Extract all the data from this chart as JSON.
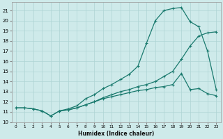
{
  "xlabel": "Humidex (Indice chaleur)",
  "bg_color": "#ceeaea",
  "grid_color": "#aed4d4",
  "line_color": "#1a7a6e",
  "xlim": [
    -0.5,
    23.5
  ],
  "ylim": [
    10.0,
    21.8
  ],
  "yticks": [
    10,
    11,
    12,
    13,
    14,
    15,
    16,
    17,
    18,
    19,
    20,
    21
  ],
  "xticks": [
    0,
    1,
    2,
    3,
    4,
    5,
    6,
    7,
    8,
    9,
    10,
    11,
    12,
    13,
    14,
    15,
    16,
    17,
    18,
    19,
    20,
    21,
    22,
    23
  ],
  "curve_main_x": [
    0,
    1,
    2,
    3,
    4,
    5,
    6,
    7,
    8,
    9,
    10,
    11,
    12,
    13,
    14,
    15,
    16,
    17,
    18,
    19,
    20,
    21,
    22,
    23
  ],
  "curve_main_y": [
    11.4,
    11.4,
    11.3,
    11.1,
    10.6,
    11.1,
    11.3,
    11.6,
    12.3,
    12.7,
    13.3,
    13.7,
    14.2,
    14.7,
    15.5,
    17.8,
    20.0,
    21.0,
    21.2,
    21.3,
    19.9,
    19.4,
    17.0,
    13.2
  ],
  "curve_low_x": [
    0,
    1,
    2,
    3,
    4,
    5,
    6,
    7,
    8,
    9,
    10,
    11,
    12,
    13,
    14,
    15,
    16,
    17,
    18,
    19,
    20,
    21,
    22,
    23
  ],
  "curve_low_y": [
    11.4,
    11.4,
    11.3,
    11.1,
    10.6,
    11.1,
    11.2,
    11.4,
    11.7,
    12.0,
    12.3,
    12.5,
    12.7,
    12.9,
    13.1,
    13.2,
    13.4,
    13.5,
    13.7,
    14.8,
    13.2,
    13.3,
    12.8,
    12.6
  ],
  "curve_mid_x": [
    5,
    6,
    7,
    8,
    9,
    10,
    11,
    12,
    13,
    14,
    15,
    16,
    17,
    18,
    19,
    20,
    21,
    22,
    23
  ],
  "curve_mid_y": [
    11.1,
    11.2,
    11.4,
    11.7,
    12.0,
    12.4,
    12.7,
    13.0,
    13.2,
    13.5,
    13.7,
    14.0,
    14.5,
    15.0,
    16.2,
    17.5,
    18.5,
    18.8,
    18.9
  ]
}
